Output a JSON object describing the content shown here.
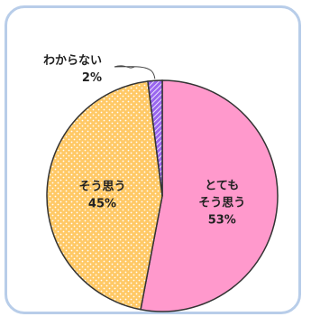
{
  "chart_data": {
    "type": "pie",
    "title": "",
    "start_angle_deg": 0,
    "direction": "clockwise",
    "slices": [
      {
        "label": [
          "とても",
          "そう思う"
        ],
        "value": 53,
        "value_label": "53%",
        "color": "#ff99cc",
        "pattern": "none"
      },
      {
        "label": [
          "そう思う"
        ],
        "value": 45,
        "value_label": "45%",
        "color": "#ffc966",
        "pattern": "dots"
      },
      {
        "label": [
          "わからない"
        ],
        "value": 2,
        "value_label": "2%",
        "color": "#9966ee",
        "pattern": "stripes"
      }
    ]
  },
  "colors": {
    "card_border": "#b8cde9",
    "slice_stroke": "#333333"
  }
}
